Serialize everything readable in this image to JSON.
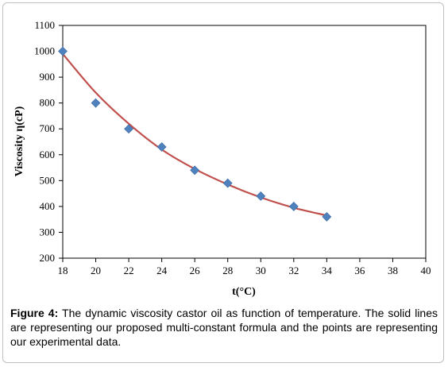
{
  "chart_data": {
    "type": "scatter",
    "xlabel": "t(°C)",
    "ylabel": "Viscosity  η(cP)",
    "xlim": [
      18,
      40
    ],
    "ylim": [
      200,
      1100
    ],
    "xticks": [
      18,
      20,
      22,
      24,
      26,
      28,
      30,
      32,
      34,
      36,
      38,
      40
    ],
    "yticks": [
      200,
      300,
      400,
      500,
      600,
      700,
      800,
      900,
      1000,
      1100
    ],
    "grid": false,
    "legend": "none",
    "series": [
      {
        "kind": "points",
        "marker": "diamond",
        "color": "#4f81bd",
        "x": [
          18,
          20,
          22,
          24,
          26,
          28,
          30,
          32,
          34
        ],
        "y": [
          1000,
          800,
          700,
          630,
          540,
          490,
          440,
          400,
          360
        ]
      },
      {
        "kind": "fitted-line",
        "color": "#c0504d",
        "x": [
          18,
          20,
          22,
          24,
          26,
          28,
          30,
          32,
          34
        ],
        "y": [
          990,
          840,
          720,
          620,
          545,
          485,
          435,
          395,
          365
        ]
      }
    ]
  },
  "caption": {
    "label": "Figure 4:",
    "text": " The dynamic viscosity castor oil as function of temperature. The solid lines are representing our proposed multi-constant formula and the points are representing our experimental data."
  }
}
